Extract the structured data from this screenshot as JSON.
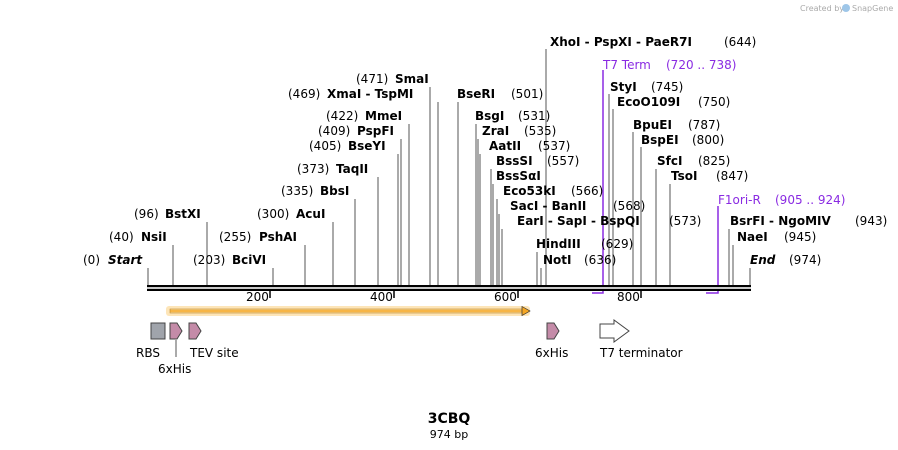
{
  "credit": {
    "prefix": "Created by",
    "brand": "SnapGene"
  },
  "title": "3CBQ",
  "length_label": "974 bp",
  "sites": [
    {
      "pre": "(0)",
      "name": "Start",
      "post": ""
    },
    {
      "pre": "(40)",
      "name": "NsiI",
      "post": ""
    },
    {
      "pre": "(96)",
      "name": "BstXI",
      "post": ""
    },
    {
      "pre": "(203)",
      "name": "BciVI",
      "post": ""
    },
    {
      "pre": "(255)",
      "name": "PshAI",
      "post": ""
    },
    {
      "pre": "(300)",
      "name": "AcuI",
      "post": ""
    },
    {
      "pre": "(335)",
      "name": "BbsI",
      "post": ""
    },
    {
      "pre": "(373)",
      "name": "TaqII",
      "post": ""
    },
    {
      "pre": "(405)",
      "name": "BseYI",
      "post": ""
    },
    {
      "pre": "(409)",
      "name": "PspFI",
      "post": ""
    },
    {
      "pre": "(422)",
      "name": "MmeI",
      "post": ""
    },
    {
      "pre": "(469)",
      "name": "XmaI  - TspMI",
      "post": ""
    },
    {
      "pre": "(471)",
      "name": "SmaI",
      "post": ""
    },
    {
      "pre": "",
      "name": "BseRI",
      "post": "(501)"
    },
    {
      "pre": "",
      "name": "BsgI",
      "post": "(531)"
    },
    {
      "pre": "",
      "name": "ZraI",
      "post": "(535)"
    },
    {
      "pre": "",
      "name": "AatII",
      "post": "(537)"
    },
    {
      "pre": "",
      "name": "BssSI",
      "post": "(557)"
    },
    {
      "pre": "",
      "name": "BssSαI",
      "post": ""
    },
    {
      "pre": "",
      "name": "Eco53kI",
      "post": "(566)"
    },
    {
      "pre": "",
      "name": "SacI  - BanII",
      "post": "(568)"
    },
    {
      "pre": "",
      "name": "EarI  - SapI  - BspQI",
      "post": "(573)"
    },
    {
      "pre": "",
      "name": "HindIII",
      "post": "(629)"
    },
    {
      "pre": "",
      "name": "NotI",
      "post": "(636)"
    },
    {
      "pre": "",
      "name": "XhoI  - PspXI  - PaeR7I",
      "post": "(644)"
    },
    {
      "pre": "",
      "name": "StyI",
      "post": "(745)"
    },
    {
      "pre": "",
      "name": "EcoO109I",
      "post": "(750)"
    },
    {
      "pre": "",
      "name": "BpuEI",
      "post": "(787)"
    },
    {
      "pre": "",
      "name": "BspEI",
      "post": "(800)"
    },
    {
      "pre": "",
      "name": "SfcI",
      "post": "(825)"
    },
    {
      "pre": "",
      "name": "TsoI",
      "post": "(847)"
    },
    {
      "pre": "",
      "name": "BsrFI  - NgoMIV",
      "post": "(943)"
    },
    {
      "pre": "",
      "name": "NaeI",
      "post": "(945)"
    },
    {
      "pre": "",
      "name": "End",
      "post": "(974)"
    }
  ],
  "primers": [
    {
      "name": "T7 Term",
      "range": "(720 .. 738)"
    },
    {
      "name": "F1ori-R",
      "range": "(905 .. 924)"
    }
  ],
  "ruler_ticks": [
    "200",
    "400",
    "600",
    "800"
  ],
  "features": [
    {
      "name": "RBS"
    },
    {
      "name": "6xHis"
    },
    {
      "name": "TEV site"
    },
    {
      "name": "6xHis"
    },
    {
      "name": "T7 terminator"
    }
  ],
  "colors": {
    "primer": "#8a2be2",
    "orf_fill": "#f5a623",
    "orf_glow": "#fde5b8",
    "his_tag": "#c48ba8",
    "rbs": "#a0a4ab"
  }
}
